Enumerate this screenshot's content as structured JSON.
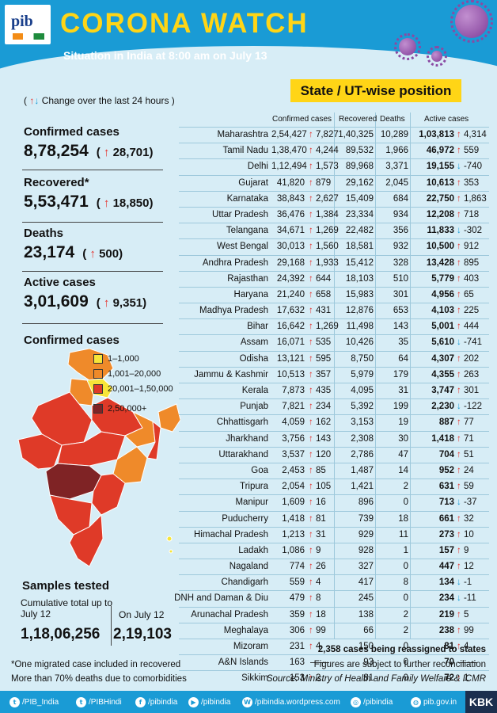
{
  "header": {
    "logo_text": "pib",
    "title": "CORONA WATCH",
    "subtitle": "Situation in India at 8:00 am on July 13"
  },
  "state_title": "State / UT-wise position",
  "change_note": {
    "open": "(",
    "up": "↑",
    "down": "↓",
    "text": "Change over the last 24 hours )"
  },
  "kpis": [
    {
      "label": "Confirmed cases",
      "value": "8,78,254",
      "delta": "28,701"
    },
    {
      "label": "Recovered*",
      "value": "5,53,471",
      "delta": "18,850"
    },
    {
      "label": "Deaths",
      "value": "23,174",
      "delta": "500"
    },
    {
      "label": "Active cases",
      "value": "3,01,609",
      "delta": "9,351"
    }
  ],
  "map": {
    "title": "Confirmed cases",
    "legend": [
      {
        "label": "1–1,000",
        "color": "#f7e538"
      },
      {
        "label": "1,001–20,000",
        "color": "#ef8a2a"
      },
      {
        "label": "20,001–1,50,000",
        "color": "#df3a28"
      },
      {
        "label": "2,50,000+",
        "color": "#7f2325"
      }
    ]
  },
  "samples": {
    "title": "Samples tested",
    "cumulative_label": "Cumulative total up to July 12",
    "cumulative_value": "1,18,06,256",
    "day_label": "On July 12",
    "day_value": "2,19,103"
  },
  "footnotes": [
    "*One migrated case included in recovered",
    "More than 70% deaths due to comorbidities"
  ],
  "table": {
    "headers": {
      "confirmed": "Confirmed cases",
      "recovered": "Recovered",
      "deaths": "Deaths",
      "active": "Active cases"
    },
    "rows": [
      {
        "state": "Maharashtra",
        "confirmed": "2,54,427",
        "cdir": "up",
        "cdelta": "7,827",
        "recovered": "1,40,325",
        "deaths": "10,289",
        "active": "1,03,813",
        "adir": "up",
        "adelta": "4,314"
      },
      {
        "state": "Tamil Nadu",
        "confirmed": "1,38,470",
        "cdir": "up",
        "cdelta": "4,244",
        "recovered": "89,532",
        "deaths": "1,966",
        "active": "46,972",
        "adir": "up",
        "adelta": "559"
      },
      {
        "state": "Delhi",
        "confirmed": "1,12,494",
        "cdir": "up",
        "cdelta": "1,573",
        "recovered": "89,968",
        "deaths": "3,371",
        "active": "19,155",
        "adir": "down",
        "adelta": "-740"
      },
      {
        "state": "Gujarat",
        "confirmed": "41,820",
        "cdir": "up",
        "cdelta": "879",
        "recovered": "29,162",
        "deaths": "2,045",
        "active": "10,613",
        "adir": "up",
        "adelta": "353"
      },
      {
        "state": "Karnataka",
        "confirmed": "38,843",
        "cdir": "up",
        "cdelta": "2,627",
        "recovered": "15,409",
        "deaths": "684",
        "active": "22,750",
        "adir": "up",
        "adelta": "1,863"
      },
      {
        "state": "Uttar Pradesh",
        "confirmed": "36,476",
        "cdir": "up",
        "cdelta": "1,384",
        "recovered": "23,334",
        "deaths": "934",
        "active": "12,208",
        "adir": "up",
        "adelta": "718"
      },
      {
        "state": "Telangana",
        "confirmed": "34,671",
        "cdir": "up",
        "cdelta": "1,269",
        "recovered": "22,482",
        "deaths": "356",
        "active": "11,833",
        "adir": "down",
        "adelta": "-302"
      },
      {
        "state": "West Bengal",
        "confirmed": "30,013",
        "cdir": "up",
        "cdelta": "1,560",
        "recovered": "18,581",
        "deaths": "932",
        "active": "10,500",
        "adir": "up",
        "adelta": "912"
      },
      {
        "state": "Andhra Pradesh",
        "confirmed": "29,168",
        "cdir": "up",
        "cdelta": "1,933",
        "recovered": "15,412",
        "deaths": "328",
        "active": "13,428",
        "adir": "up",
        "adelta": "895"
      },
      {
        "state": "Rajasthan",
        "confirmed": "24,392",
        "cdir": "up",
        "cdelta": "644",
        "recovered": "18,103",
        "deaths": "510",
        "active": "5,779",
        "adir": "up",
        "adelta": "403"
      },
      {
        "state": "Haryana",
        "confirmed": "21,240",
        "cdir": "up",
        "cdelta": "658",
        "recovered": "15,983",
        "deaths": "301",
        "active": "4,956",
        "adir": "up",
        "adelta": "65"
      },
      {
        "state": "Madhya Pradesh",
        "confirmed": "17,632",
        "cdir": "up",
        "cdelta": "431",
        "recovered": "12,876",
        "deaths": "653",
        "active": "4,103",
        "adir": "up",
        "adelta": "225"
      },
      {
        "state": "Bihar",
        "confirmed": "16,642",
        "cdir": "up",
        "cdelta": "1,269",
        "recovered": "11,498",
        "deaths": "143",
        "active": "5,001",
        "adir": "up",
        "adelta": "444"
      },
      {
        "state": "Assam",
        "confirmed": "16,071",
        "cdir": "up",
        "cdelta": "535",
        "recovered": "10,426",
        "deaths": "35",
        "active": "5,610",
        "adir": "down",
        "adelta": "-741"
      },
      {
        "state": "Odisha",
        "confirmed": "13,121",
        "cdir": "up",
        "cdelta": "595",
        "recovered": "8,750",
        "deaths": "64",
        "active": "4,307",
        "adir": "up",
        "adelta": "202"
      },
      {
        "state": "Jammu & Kashmir",
        "confirmed": "10,513",
        "cdir": "up",
        "cdelta": "357",
        "recovered": "5,979",
        "deaths": "179",
        "active": "4,355",
        "adir": "up",
        "adelta": "263"
      },
      {
        "state": "Kerala",
        "confirmed": "7,873",
        "cdir": "up",
        "cdelta": "435",
        "recovered": "4,095",
        "deaths": "31",
        "active": "3,747",
        "adir": "up",
        "adelta": "301"
      },
      {
        "state": "Punjab",
        "confirmed": "7,821",
        "cdir": "up",
        "cdelta": "234",
        "recovered": "5,392",
        "deaths": "199",
        "active": "2,230",
        "adir": "down",
        "adelta": "-122"
      },
      {
        "state": "Chhattisgarh",
        "confirmed": "4,059",
        "cdir": "up",
        "cdelta": "162",
        "recovered": "3,153",
        "deaths": "19",
        "active": "887",
        "adir": "up",
        "adelta": "77"
      },
      {
        "state": "Jharkhand",
        "confirmed": "3,756",
        "cdir": "up",
        "cdelta": "143",
        "recovered": "2,308",
        "deaths": "30",
        "active": "1,418",
        "adir": "up",
        "adelta": "71"
      },
      {
        "state": "Uttarakhand",
        "confirmed": "3,537",
        "cdir": "up",
        "cdelta": "120",
        "recovered": "2,786",
        "deaths": "47",
        "active": "704",
        "adir": "up",
        "adelta": "51"
      },
      {
        "state": "Goa",
        "confirmed": "2,453",
        "cdir": "up",
        "cdelta": "85",
        "recovered": "1,487",
        "deaths": "14",
        "active": "952",
        "adir": "up",
        "adelta": "24"
      },
      {
        "state": "Tripura",
        "confirmed": "2,054",
        "cdir": "up",
        "cdelta": "105",
        "recovered": "1,421",
        "deaths": "2",
        "active": "631",
        "adir": "up",
        "adelta": "59"
      },
      {
        "state": "Manipur",
        "confirmed": "1,609",
        "cdir": "up",
        "cdelta": "16",
        "recovered": "896",
        "deaths": "0",
        "active": "713",
        "adir": "down",
        "adelta": "-37"
      },
      {
        "state": "Puducherry",
        "confirmed": "1,418",
        "cdir": "up",
        "cdelta": "81",
        "recovered": "739",
        "deaths": "18",
        "active": "661",
        "adir": "up",
        "adelta": "32"
      },
      {
        "state": "Himachal Pradesh",
        "confirmed": "1,213",
        "cdir": "up",
        "cdelta": "31",
        "recovered": "929",
        "deaths": "11",
        "active": "273",
        "adir": "up",
        "adelta": "10"
      },
      {
        "state": "Ladakh",
        "confirmed": "1,086",
        "cdir": "up",
        "cdelta": "9",
        "recovered": "928",
        "deaths": "1",
        "active": "157",
        "adir": "up",
        "adelta": "9"
      },
      {
        "state": "Nagaland",
        "confirmed": "774",
        "cdir": "up",
        "cdelta": "26",
        "recovered": "327",
        "deaths": "0",
        "active": "447",
        "adir": "up",
        "adelta": "12"
      },
      {
        "state": "Chandigarh",
        "confirmed": "559",
        "cdir": "up",
        "cdelta": "4",
        "recovered": "417",
        "deaths": "8",
        "active": "134",
        "adir": "down",
        "adelta": "-1"
      },
      {
        "state": "DNH and Daman & Diu",
        "confirmed": "479",
        "cdir": "up",
        "cdelta": "8",
        "recovered": "245",
        "deaths": "0",
        "active": "234",
        "adir": "down",
        "adelta": "-11"
      },
      {
        "state": "Arunachal Pradesh",
        "confirmed": "359",
        "cdir": "up",
        "cdelta": "18",
        "recovered": "138",
        "deaths": "2",
        "active": "219",
        "adir": "up",
        "adelta": "5"
      },
      {
        "state": "Meghalaya",
        "confirmed": "306",
        "cdir": "up",
        "cdelta": "99",
        "recovered": "66",
        "deaths": "2",
        "active": "238",
        "adir": "up",
        "adelta": "99"
      },
      {
        "state": "Mizoram",
        "confirmed": "231",
        "cdir": "up",
        "cdelta": "4",
        "recovered": "150",
        "deaths": "0",
        "active": "81",
        "adir": "up",
        "adelta": "4"
      },
      {
        "state": "A&N Islands",
        "confirmed": "163",
        "cdir": "none",
        "cdelta": "",
        "recovered": "93",
        "deaths": "0",
        "active": "70",
        "adir": "none",
        "adelta": ""
      },
      {
        "state": "Sikkim",
        "confirmed": "153",
        "cdir": "up",
        "cdelta": "2",
        "recovered": "81",
        "deaths": "0",
        "active": "72",
        "adir": "up",
        "adelta": "1"
      }
    ]
  },
  "right_notes": {
    "reassigned": "2,358 cases being reassigned to states",
    "reconciliation": "Figures are subject to further reconciliation",
    "source": "Source: Ministry of Health and Family Welfare & ICMR"
  },
  "footer": {
    "items": [
      {
        "icon": "twitter-icon",
        "label": "/PIB_India"
      },
      {
        "icon": "twitter-icon",
        "label": "/PIBHindi"
      },
      {
        "icon": "facebook-icon",
        "label": "/pibindia"
      },
      {
        "icon": "youtube-icon",
        "label": "/pibindia"
      },
      {
        "icon": "wordpress-icon",
        "label": "/pibindia.wordpress.com"
      },
      {
        "icon": "instagram-icon",
        "label": "/pibindia"
      },
      {
        "icon": "globe-icon",
        "label": "pib.gov.in"
      }
    ],
    "badge": "KBK"
  },
  "colors": {
    "header_blue": "#1a9bd5",
    "title_yellow": "#ffd516",
    "background": "#d7edf6",
    "arrow_up": "#e5322d",
    "arrow_down": "#1a9bd5"
  }
}
